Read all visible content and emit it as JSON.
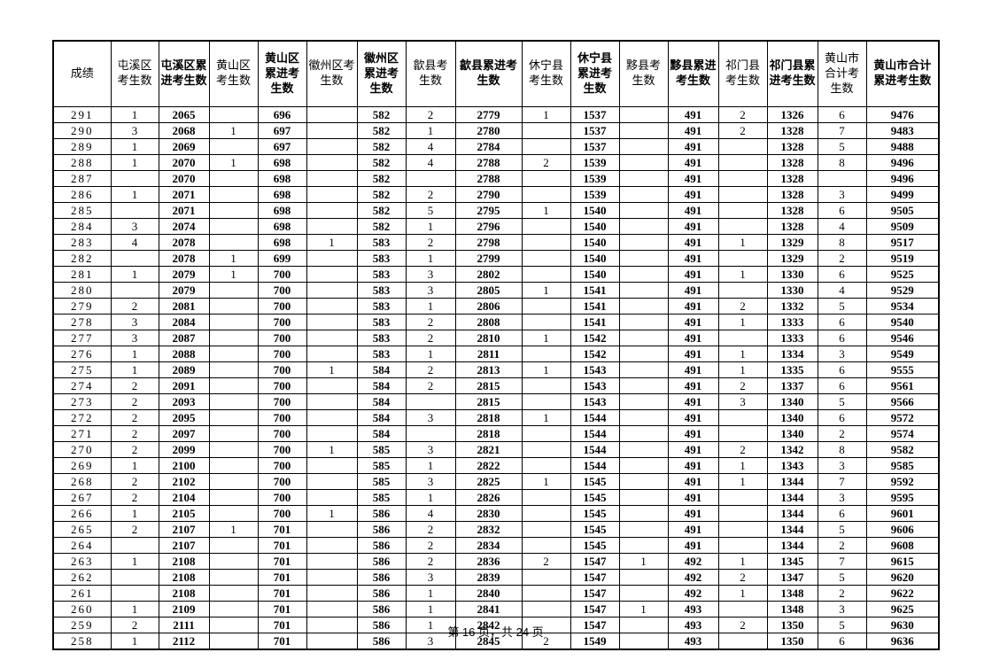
{
  "page": {
    "footer": "第 16 页，共 24 页"
  },
  "table": {
    "columns": [
      {
        "label": "成绩",
        "cumulative": false
      },
      {
        "label": "屯溪区考生数",
        "cumulative": false
      },
      {
        "label": "屯溪区累进考生数",
        "cumulative": true
      },
      {
        "label": "黄山区考生数",
        "cumulative": false
      },
      {
        "label": "黄山区累进考生数",
        "cumulative": true
      },
      {
        "label": "徽州区考生数",
        "cumulative": false
      },
      {
        "label": "徽州区累进考生数",
        "cumulative": true
      },
      {
        "label": "歙县考生数",
        "cumulative": false
      },
      {
        "label": "歙县累进考生数",
        "cumulative": true
      },
      {
        "label": "休宁县考生数",
        "cumulative": false
      },
      {
        "label": "休宁县累进考生数",
        "cumulative": true
      },
      {
        "label": "黟县考生数",
        "cumulative": false
      },
      {
        "label": "黟县累进考生数",
        "cumulative": true
      },
      {
        "label": "祁门县考生数",
        "cumulative": false
      },
      {
        "label": "祁门县累进考生数",
        "cumulative": true
      },
      {
        "label": "黄山市合计考生数",
        "cumulative": false
      },
      {
        "label": "黄山市合计累进考生数",
        "cumulative": true
      }
    ],
    "rows": [
      [
        "291",
        "1",
        "2065",
        "",
        "696",
        "",
        "582",
        "2",
        "2779",
        "1",
        "1537",
        "",
        "491",
        "2",
        "1326",
        "6",
        "9476"
      ],
      [
        "290",
        "3",
        "2068",
        "1",
        "697",
        "",
        "582",
        "1",
        "2780",
        "",
        "1537",
        "",
        "491",
        "2",
        "1328",
        "7",
        "9483"
      ],
      [
        "289",
        "1",
        "2069",
        "",
        "697",
        "",
        "582",
        "4",
        "2784",
        "",
        "1537",
        "",
        "491",
        "",
        "1328",
        "5",
        "9488"
      ],
      [
        "288",
        "1",
        "2070",
        "1",
        "698",
        "",
        "582",
        "4",
        "2788",
        "2",
        "1539",
        "",
        "491",
        "",
        "1328",
        "8",
        "9496"
      ],
      [
        "287",
        "",
        "2070",
        "",
        "698",
        "",
        "582",
        "",
        "2788",
        "",
        "1539",
        "",
        "491",
        "",
        "1328",
        "",
        "9496"
      ],
      [
        "286",
        "1",
        "2071",
        "",
        "698",
        "",
        "582",
        "2",
        "2790",
        "",
        "1539",
        "",
        "491",
        "",
        "1328",
        "3",
        "9499"
      ],
      [
        "285",
        "",
        "2071",
        "",
        "698",
        "",
        "582",
        "5",
        "2795",
        "1",
        "1540",
        "",
        "491",
        "",
        "1328",
        "6",
        "9505"
      ],
      [
        "284",
        "3",
        "2074",
        "",
        "698",
        "",
        "582",
        "1",
        "2796",
        "",
        "1540",
        "",
        "491",
        "",
        "1328",
        "4",
        "9509"
      ],
      [
        "283",
        "4",
        "2078",
        "",
        "698",
        "1",
        "583",
        "2",
        "2798",
        "",
        "1540",
        "",
        "491",
        "1",
        "1329",
        "8",
        "9517"
      ],
      [
        "282",
        "",
        "2078",
        "1",
        "699",
        "",
        "583",
        "1",
        "2799",
        "",
        "1540",
        "",
        "491",
        "",
        "1329",
        "2",
        "9519"
      ],
      [
        "281",
        "1",
        "2079",
        "1",
        "700",
        "",
        "583",
        "3",
        "2802",
        "",
        "1540",
        "",
        "491",
        "1",
        "1330",
        "6",
        "9525"
      ],
      [
        "280",
        "",
        "2079",
        "",
        "700",
        "",
        "583",
        "3",
        "2805",
        "1",
        "1541",
        "",
        "491",
        "",
        "1330",
        "4",
        "9529"
      ],
      [
        "279",
        "2",
        "2081",
        "",
        "700",
        "",
        "583",
        "1",
        "2806",
        "",
        "1541",
        "",
        "491",
        "2",
        "1332",
        "5",
        "9534"
      ],
      [
        "278",
        "3",
        "2084",
        "",
        "700",
        "",
        "583",
        "2",
        "2808",
        "",
        "1541",
        "",
        "491",
        "1",
        "1333",
        "6",
        "9540"
      ],
      [
        "277",
        "3",
        "2087",
        "",
        "700",
        "",
        "583",
        "2",
        "2810",
        "1",
        "1542",
        "",
        "491",
        "",
        "1333",
        "6",
        "9546"
      ],
      [
        "276",
        "1",
        "2088",
        "",
        "700",
        "",
        "583",
        "1",
        "2811",
        "",
        "1542",
        "",
        "491",
        "1",
        "1334",
        "3",
        "9549"
      ],
      [
        "275",
        "1",
        "2089",
        "",
        "700",
        "1",
        "584",
        "2",
        "2813",
        "1",
        "1543",
        "",
        "491",
        "1",
        "1335",
        "6",
        "9555"
      ],
      [
        "274",
        "2",
        "2091",
        "",
        "700",
        "",
        "584",
        "2",
        "2815",
        "",
        "1543",
        "",
        "491",
        "2",
        "1337",
        "6",
        "9561"
      ],
      [
        "273",
        "2",
        "2093",
        "",
        "700",
        "",
        "584",
        "",
        "2815",
        "",
        "1543",
        "",
        "491",
        "3",
        "1340",
        "5",
        "9566"
      ],
      [
        "272",
        "2",
        "2095",
        "",
        "700",
        "",
        "584",
        "3",
        "2818",
        "1",
        "1544",
        "",
        "491",
        "",
        "1340",
        "6",
        "9572"
      ],
      [
        "271",
        "2",
        "2097",
        "",
        "700",
        "",
        "584",
        "",
        "2818",
        "",
        "1544",
        "",
        "491",
        "",
        "1340",
        "2",
        "9574"
      ],
      [
        "270",
        "2",
        "2099",
        "",
        "700",
        "1",
        "585",
        "3",
        "2821",
        "",
        "1544",
        "",
        "491",
        "2",
        "1342",
        "8",
        "9582"
      ],
      [
        "269",
        "1",
        "2100",
        "",
        "700",
        "",
        "585",
        "1",
        "2822",
        "",
        "1544",
        "",
        "491",
        "1",
        "1343",
        "3",
        "9585"
      ],
      [
        "268",
        "2",
        "2102",
        "",
        "700",
        "",
        "585",
        "3",
        "2825",
        "1",
        "1545",
        "",
        "491",
        "1",
        "1344",
        "7",
        "9592"
      ],
      [
        "267",
        "2",
        "2104",
        "",
        "700",
        "",
        "585",
        "1",
        "2826",
        "",
        "1545",
        "",
        "491",
        "",
        "1344",
        "3",
        "9595"
      ],
      [
        "266",
        "1",
        "2105",
        "",
        "700",
        "1",
        "586",
        "4",
        "2830",
        "",
        "1545",
        "",
        "491",
        "",
        "1344",
        "6",
        "9601"
      ],
      [
        "265",
        "2",
        "2107",
        "1",
        "701",
        "",
        "586",
        "2",
        "2832",
        "",
        "1545",
        "",
        "491",
        "",
        "1344",
        "5",
        "9606"
      ],
      [
        "264",
        "",
        "2107",
        "",
        "701",
        "",
        "586",
        "2",
        "2834",
        "",
        "1545",
        "",
        "491",
        "",
        "1344",
        "2",
        "9608"
      ],
      [
        "263",
        "1",
        "2108",
        "",
        "701",
        "",
        "586",
        "2",
        "2836",
        "2",
        "1547",
        "1",
        "492",
        "1",
        "1345",
        "7",
        "9615"
      ],
      [
        "262",
        "",
        "2108",
        "",
        "701",
        "",
        "586",
        "3",
        "2839",
        "",
        "1547",
        "",
        "492",
        "2",
        "1347",
        "5",
        "9620"
      ],
      [
        "261",
        "",
        "2108",
        "",
        "701",
        "",
        "586",
        "1",
        "2840",
        "",
        "1547",
        "",
        "492",
        "1",
        "1348",
        "2",
        "9622"
      ],
      [
        "260",
        "1",
        "2109",
        "",
        "701",
        "",
        "586",
        "1",
        "2841",
        "",
        "1547",
        "1",
        "493",
        "",
        "1348",
        "3",
        "9625"
      ],
      [
        "259",
        "2",
        "2111",
        "",
        "701",
        "",
        "586",
        "1",
        "2842",
        "",
        "1547",
        "",
        "493",
        "2",
        "1350",
        "5",
        "9630"
      ],
      [
        "258",
        "1",
        "2112",
        "",
        "701",
        "",
        "586",
        "3",
        "2845",
        "2",
        "1549",
        "",
        "493",
        "",
        "1350",
        "6",
        "9636"
      ]
    ]
  }
}
